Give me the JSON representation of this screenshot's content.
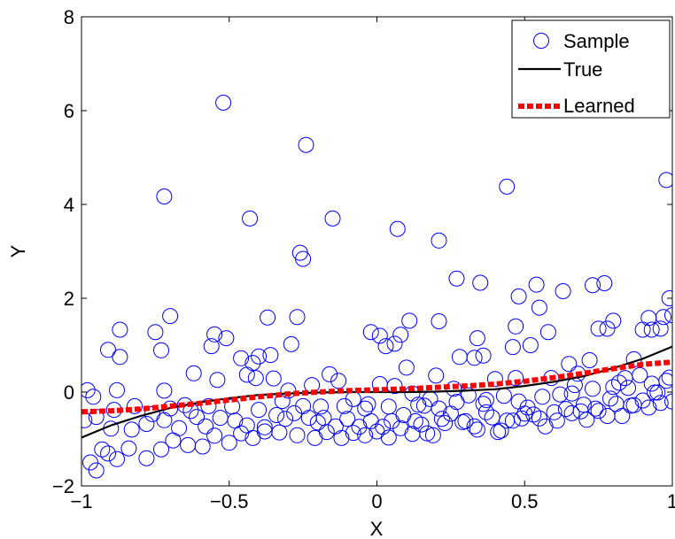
{
  "chart_data": {
    "type": "scatter",
    "title": "",
    "xlabel": "X",
    "ylabel": "Y",
    "xlim": [
      -1,
      1
    ],
    "ylim": [
      -2,
      8
    ],
    "xticks": [
      -1,
      -0.5,
      0,
      0.5,
      1
    ],
    "xtick_labels": [
      "−1",
      "−0.5",
      "0",
      "0.5",
      "1"
    ],
    "yticks": [
      -2,
      0,
      2,
      4,
      6,
      8
    ],
    "ytick_labels": [
      "−2",
      "0",
      "2",
      "4",
      "6",
      "8"
    ],
    "grid": false,
    "legend_position": "top-right",
    "colors": {
      "sample": "#0000ff",
      "true": "#000000",
      "learned": "#ff0000"
    },
    "legend": [
      "Sample",
      "True",
      "Learned"
    ],
    "series": [
      {
        "name": "Sample",
        "kind": "scatter",
        "points": [
          [
            -0.52,
            6.17
          ],
          [
            -0.24,
            5.27
          ],
          [
            -0.72,
            4.17
          ],
          [
            -0.43,
            3.7
          ],
          [
            -0.15,
            3.7
          ],
          [
            0.07,
            3.48
          ],
          [
            0.21,
            3.23
          ],
          [
            0.44,
            4.38
          ],
          [
            0.98,
            4.52
          ],
          [
            -0.26,
            2.97
          ],
          [
            -0.25,
            2.84
          ],
          [
            0.27,
            2.42
          ],
          [
            0.35,
            2.33
          ],
          [
            0.63,
            2.15
          ],
          [
            0.73,
            2.28
          ],
          [
            0.77,
            2.32
          ],
          [
            0.54,
            2.29
          ],
          [
            0.48,
            2.04
          ],
          [
            0.99,
            2.0
          ],
          [
            -0.7,
            1.62
          ],
          [
            -0.37,
            1.59
          ],
          [
            -0.27,
            1.6
          ],
          [
            0.11,
            1.52
          ],
          [
            0.21,
            1.51
          ],
          [
            0.55,
            1.8
          ],
          [
            0.8,
            1.52
          ],
          [
            0.92,
            1.58
          ],
          [
            0.97,
            1.6
          ],
          [
            1.0,
            1.64
          ],
          [
            -0.87,
            1.33
          ],
          [
            -0.75,
            1.28
          ],
          [
            -0.55,
            1.23
          ],
          [
            -0.51,
            1.15
          ],
          [
            -0.56,
            0.98
          ],
          [
            -0.29,
            1.02
          ],
          [
            -0.02,
            1.28
          ],
          [
            0.01,
            1.2
          ],
          [
            0.03,
            0.98
          ],
          [
            0.06,
            1.03
          ],
          [
            0.08,
            1.22
          ],
          [
            0.34,
            1.15
          ],
          [
            0.47,
            1.4
          ],
          [
            0.52,
            1.0
          ],
          [
            0.58,
            1.28
          ],
          [
            0.75,
            1.35
          ],
          [
            0.78,
            1.35
          ],
          [
            0.9,
            1.33
          ],
          [
            0.93,
            1.33
          ],
          [
            0.96,
            1.35
          ],
          [
            -0.91,
            0.9
          ],
          [
            -0.87,
            0.75
          ],
          [
            -0.73,
            0.89
          ],
          [
            -0.46,
            0.72
          ],
          [
            -0.42,
            0.62
          ],
          [
            -0.4,
            0.76
          ],
          [
            -0.36,
            0.79
          ],
          [
            -0.16,
            0.38
          ],
          [
            0.1,
            0.52
          ],
          [
            0.2,
            0.35
          ],
          [
            0.28,
            0.75
          ],
          [
            0.33,
            0.73
          ],
          [
            0.36,
            0.78
          ],
          [
            0.46,
            0.96
          ],
          [
            0.65,
            0.6
          ],
          [
            0.72,
            0.68
          ],
          [
            0.87,
            0.7
          ],
          [
            -0.98,
            0.04
          ],
          [
            -0.88,
            0.04
          ],
          [
            -0.72,
            0.03
          ],
          [
            -0.65,
            -0.28
          ],
          [
            -0.62,
            0.4
          ],
          [
            -0.54,
            0.26
          ],
          [
            -0.44,
            0.37
          ],
          [
            -0.41,
            0.3
          ],
          [
            -0.35,
            0.29
          ],
          [
            -0.3,
            0.03
          ],
          [
            -0.22,
            0.15
          ],
          [
            -0.13,
            0.24
          ],
          [
            -0.08,
            -0.15
          ],
          [
            -0.03,
            -0.26
          ],
          [
            0.01,
            0.17
          ],
          [
            0.06,
            0.13
          ],
          [
            0.12,
            -0.03
          ],
          [
            0.16,
            -0.29
          ],
          [
            0.18,
            -0.15
          ],
          [
            0.26,
            0.07
          ],
          [
            0.31,
            -0.07
          ],
          [
            0.37,
            -0.17
          ],
          [
            0.4,
            0.28
          ],
          [
            0.47,
            0.3
          ],
          [
            0.51,
            -0.33
          ],
          [
            0.59,
            0.3
          ],
          [
            0.66,
            -0.03
          ],
          [
            0.68,
            0.39
          ],
          [
            0.7,
            -0.27
          ],
          [
            0.79,
            -0.14
          ],
          [
            0.82,
            0.2
          ],
          [
            0.84,
            0.3
          ],
          [
            0.89,
            0.36
          ],
          [
            0.95,
            -0.01
          ],
          [
            -0.99,
            -0.6
          ],
          [
            -0.95,
            -0.53
          ],
          [
            -0.9,
            -0.78
          ],
          [
            -0.83,
            -0.8
          ],
          [
            -0.78,
            -0.68
          ],
          [
            -0.72,
            -0.6
          ],
          [
            -0.67,
            -0.77
          ],
          [
            -0.61,
            -0.53
          ],
          [
            -0.58,
            -0.73
          ],
          [
            -0.53,
            -0.55
          ],
          [
            -0.48,
            -0.61
          ],
          [
            -0.44,
            -0.71
          ],
          [
            -0.38,
            -0.84
          ],
          [
            -0.34,
            -0.49
          ],
          [
            -0.31,
            -0.57
          ],
          [
            -0.28,
            -0.45
          ],
          [
            -0.23,
            -0.55
          ],
          [
            -0.2,
            -0.65
          ],
          [
            -0.18,
            -0.55
          ],
          [
            -0.14,
            -0.73
          ],
          [
            -0.1,
            -0.57
          ],
          [
            -0.06,
            -0.74
          ],
          [
            -0.02,
            -0.62
          ],
          [
            0.02,
            -0.74
          ],
          [
            0.05,
            -0.62
          ],
          [
            0.09,
            -0.49
          ],
          [
            0.13,
            -0.62
          ],
          [
            0.17,
            -0.88
          ],
          [
            0.22,
            -0.57
          ],
          [
            0.25,
            -0.46
          ],
          [
            0.29,
            -0.64
          ],
          [
            0.33,
            -0.73
          ],
          [
            0.37,
            -0.43
          ],
          [
            0.41,
            -0.85
          ],
          [
            0.44,
            -0.61
          ],
          [
            0.49,
            -0.56
          ],
          [
            0.53,
            -0.48
          ],
          [
            0.57,
            -0.73
          ],
          [
            0.61,
            -0.61
          ],
          [
            0.66,
            -0.45
          ],
          [
            0.71,
            -0.59
          ],
          [
            0.74,
            -0.35
          ],
          [
            0.78,
            -0.51
          ],
          [
            0.83,
            -0.51
          ],
          [
            0.87,
            -0.28
          ],
          [
            0.92,
            -0.33
          ],
          [
            0.96,
            -0.23
          ],
          [
            1.0,
            -0.2
          ],
          [
            -0.97,
            -1.5
          ],
          [
            -0.95,
            -1.67
          ],
          [
            -0.93,
            -1.22
          ],
          [
            -0.91,
            -1.31
          ],
          [
            -0.88,
            -1.43
          ],
          [
            -0.84,
            -1.2
          ],
          [
            -0.78,
            -1.41
          ],
          [
            -0.73,
            -1.22
          ],
          [
            -0.69,
            -1.03
          ],
          [
            -0.64,
            -1.13
          ],
          [
            -0.59,
            -1.16
          ],
          [
            -0.55,
            -0.93
          ],
          [
            -0.5,
            -1.08
          ],
          [
            -0.46,
            -0.88
          ],
          [
            -0.42,
            -0.98
          ],
          [
            -0.38,
            -0.75
          ],
          [
            -0.33,
            -0.86
          ],
          [
            -0.27,
            -0.92
          ],
          [
            -0.21,
            -0.98
          ],
          [
            -0.17,
            -0.85
          ],
          [
            -0.12,
            -0.98
          ],
          [
            -0.08,
            -0.87
          ],
          [
            -0.04,
            -0.92
          ],
          [
            0.0,
            -0.84
          ],
          [
            0.04,
            -0.97
          ],
          [
            0.08,
            -0.77
          ],
          [
            0.12,
            -0.89
          ],
          [
            0.15,
            -0.69
          ],
          [
            0.19,
            -0.92
          ],
          [
            0.23,
            -0.66
          ],
          [
            0.3,
            -0.62
          ],
          [
            0.34,
            -0.8
          ],
          [
            0.39,
            -0.54
          ],
          [
            0.42,
            -0.82
          ],
          [
            0.46,
            -0.61
          ],
          [
            0.5,
            -0.46
          ],
          [
            0.55,
            -0.56
          ],
          [
            0.6,
            -0.43
          ],
          [
            0.64,
            -0.36
          ],
          [
            0.69,
            -0.41
          ],
          [
            0.75,
            -0.4
          ],
          [
            0.81,
            -0.25
          ],
          [
            0.86,
            -0.29
          ],
          [
            0.9,
            -0.18
          ],
          [
            0.94,
            -0.01
          ],
          [
            0.98,
            0.24
          ],
          [
            -0.96,
            -0.1
          ],
          [
            -0.89,
            -0.38
          ],
          [
            -0.82,
            -0.3
          ],
          [
            -0.76,
            -0.47
          ],
          [
            -0.7,
            -0.35
          ],
          [
            -0.63,
            -0.4
          ],
          [
            -0.57,
            -0.3
          ],
          [
            -0.49,
            -0.31
          ],
          [
            -0.4,
            -0.38
          ],
          [
            -0.32,
            -0.19
          ],
          [
            -0.25,
            -0.3
          ],
          [
            -0.19,
            -0.31
          ],
          [
            -0.11,
            -0.3
          ],
          [
            -0.04,
            -0.35
          ],
          [
            0.04,
            -0.31
          ],
          [
            0.14,
            -0.27
          ],
          [
            0.21,
            -0.35
          ],
          [
            0.27,
            -0.21
          ],
          [
            0.36,
            -0.25
          ],
          [
            0.43,
            -0.08
          ],
          [
            0.48,
            -0.2
          ],
          [
            0.56,
            -0.1
          ],
          [
            0.62,
            -0.05
          ],
          [
            0.67,
            0.15
          ],
          [
            0.73,
            0.07
          ],
          [
            0.8,
            0.11
          ],
          [
            0.85,
            0.09
          ],
          [
            0.93,
            0.18
          ],
          [
            0.99,
            0.31
          ]
        ]
      },
      {
        "name": "True",
        "kind": "line",
        "x": [
          -1,
          -0.9,
          -0.8,
          -0.7,
          -0.6,
          -0.5,
          -0.4,
          -0.3,
          -0.2,
          -0.1,
          0,
          0.1,
          0.2,
          0.3,
          0.4,
          0.5,
          0.6,
          0.7,
          0.8,
          0.9,
          1
        ],
        "y": [
          -0.97,
          -0.71,
          -0.51,
          -0.34,
          -0.22,
          -0.13,
          -0.06,
          -0.03,
          -0.01,
          0.0,
          0.0,
          0.0,
          0.01,
          0.03,
          0.06,
          0.13,
          0.22,
          0.34,
          0.51,
          0.71,
          0.97
        ]
      },
      {
        "name": "Learned",
        "kind": "line",
        "x": [
          -1,
          -0.9,
          -0.8,
          -0.7,
          -0.6,
          -0.5,
          -0.4,
          -0.3,
          -0.2,
          -0.1,
          0,
          0.1,
          0.2,
          0.3,
          0.4,
          0.5,
          0.6,
          0.7,
          0.8,
          0.9,
          1
        ],
        "y": [
          -0.42,
          -0.4,
          -0.36,
          -0.3,
          -0.24,
          -0.17,
          -0.1,
          -0.04,
          0.0,
          0.03,
          0.05,
          0.07,
          0.1,
          0.13,
          0.17,
          0.23,
          0.31,
          0.4,
          0.5,
          0.59,
          0.64
        ]
      }
    ]
  }
}
